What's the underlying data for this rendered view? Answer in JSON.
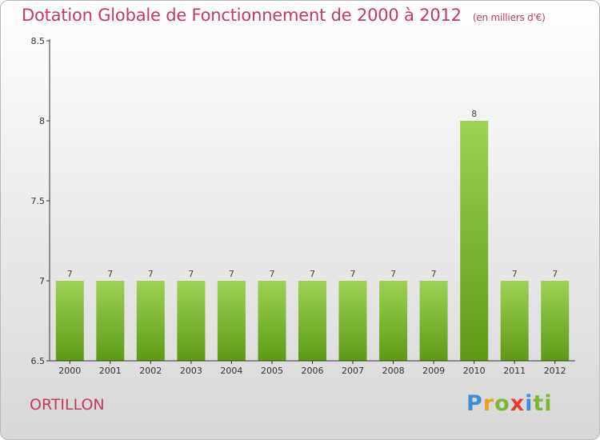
{
  "header": {
    "title": "Dotation Globale de Fonctionnement de 2000 à 2012",
    "unit": "(en milliers d'€)"
  },
  "footer": {
    "commune": "ORTILLON",
    "logo": [
      "P",
      "r",
      "o",
      "x",
      "i",
      "ti"
    ]
  },
  "chart_data": {
    "type": "bar",
    "categories": [
      "2000",
      "2001",
      "2002",
      "2003",
      "2004",
      "2005",
      "2006",
      "2007",
      "2008",
      "2009",
      "2010",
      "2011",
      "2012"
    ],
    "values": [
      7,
      7,
      7,
      7,
      7,
      7,
      7,
      7,
      7,
      7,
      8,
      7,
      7
    ],
    "ylim": [
      6.5,
      8.5
    ],
    "yticks": [
      6.5,
      7,
      7.5,
      8,
      8.5
    ],
    "xlabel": "",
    "ylabel": "",
    "grid": false,
    "colors": {
      "bar_top": "#9fd154",
      "bar_bottom": "#5e9a16",
      "axis": "#333333"
    }
  }
}
